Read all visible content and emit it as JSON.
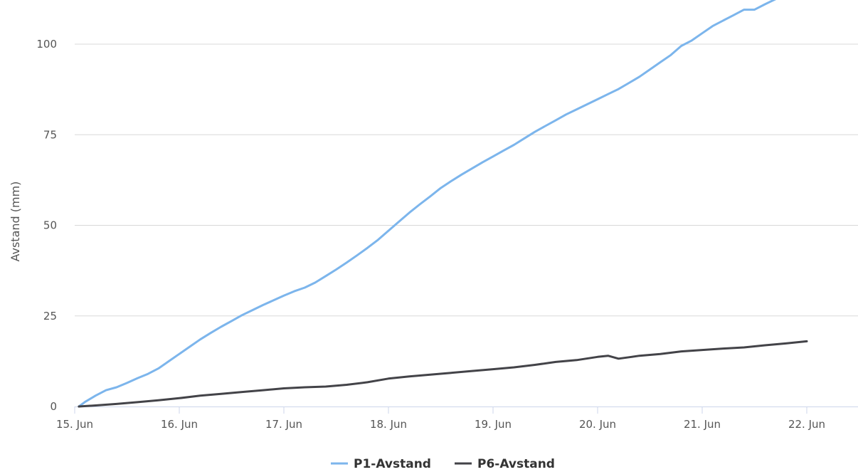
{
  "chart_data": {
    "type": "line",
    "xlabel": "",
    "ylabel": "Avstand (mm)",
    "ylim": [
      0,
      110
    ],
    "yticks": [
      0,
      25,
      50,
      75,
      100
    ],
    "xlim": [
      0,
      7.45
    ],
    "xticks": [
      {
        "v": 0,
        "label": "15. Jun"
      },
      {
        "v": 1,
        "label": "16. Jun"
      },
      {
        "v": 2,
        "label": "17. Jun"
      },
      {
        "v": 3,
        "label": "18. Jun"
      },
      {
        "v": 4,
        "label": "19. Jun"
      },
      {
        "v": 5,
        "label": "20. Jun"
      },
      {
        "v": 6,
        "label": "21. Jun"
      },
      {
        "v": 7,
        "label": "22. Jun"
      }
    ],
    "grid": true,
    "legend_position": "bottom-center",
    "series": [
      {
        "name": "P1-Avstand",
        "color": "#7cb5ec",
        "x": [
          0.04,
          0.1,
          0.2,
          0.3,
          0.4,
          0.5,
          0.6,
          0.7,
          0.8,
          0.9,
          1.0,
          1.1,
          1.2,
          1.3,
          1.4,
          1.5,
          1.6,
          1.7,
          1.8,
          1.9,
          2.0,
          2.1,
          2.2,
          2.3,
          2.4,
          2.5,
          2.6,
          2.7,
          2.8,
          2.9,
          3.0,
          3.1,
          3.2,
          3.3,
          3.4,
          3.5,
          3.6,
          3.7,
          3.8,
          3.9,
          4.0,
          4.1,
          4.2,
          4.3,
          4.4,
          4.5,
          4.6,
          4.7,
          4.8,
          4.9,
          5.0,
          5.1,
          5.2,
          5.3,
          5.4,
          5.5,
          5.6,
          5.7,
          5.8,
          5.9,
          6.0,
          6.1,
          6.2,
          6.3,
          6.4,
          6.47,
          6.5,
          6.6,
          6.7,
          6.8,
          6.9,
          7.0,
          7.1
        ],
        "values": [
          0,
          1.3,
          3.0,
          4.5,
          5.3,
          6.5,
          7.8,
          9.0,
          10.5,
          12.5,
          14.5,
          16.5,
          18.5,
          20.3,
          22.0,
          23.6,
          25.2,
          26.6,
          28.0,
          29.3,
          30.6,
          31.8,
          32.8,
          34.2,
          36.0,
          37.8,
          39.7,
          41.7,
          43.8,
          46.0,
          48.5,
          51.0,
          53.5,
          55.8,
          58.0,
          60.3,
          62.2,
          64.0,
          65.7,
          67.4,
          69.0,
          70.6,
          72.2,
          74.0,
          75.8,
          77.4,
          79.0,
          80.6,
          82.0,
          83.4,
          84.8,
          86.2,
          87.6,
          89.3,
          91.0,
          93.0,
          95.0,
          97.0,
          99.5,
          101.0,
          103.0,
          105.0,
          106.5,
          108.0,
          109.5,
          100,
          109.5,
          111,
          112.4,
          113.8,
          115.2,
          116.6,
          118
        ]
      },
      {
        "name": "P6-Avstand",
        "color": "#434348",
        "x": [
          0.04,
          0.2,
          0.4,
          0.6,
          0.8,
          1.0,
          1.2,
          1.4,
          1.6,
          1.8,
          2.0,
          2.2,
          2.4,
          2.6,
          2.8,
          3.0,
          3.2,
          3.4,
          3.6,
          3.8,
          4.0,
          4.2,
          4.4,
          4.6,
          4.8,
          5.0,
          5.1,
          5.2,
          5.3,
          5.4,
          5.6,
          5.8,
          6.0,
          6.2,
          6.4,
          6.6,
          6.8,
          7.0
        ],
        "values": [
          0,
          0.3,
          0.7,
          1.2,
          1.7,
          2.3,
          3.0,
          3.5,
          4.0,
          4.5,
          5.0,
          5.3,
          5.5,
          6.0,
          6.7,
          7.7,
          8.3,
          8.8,
          9.3,
          9.8,
          10.3,
          10.8,
          11.5,
          12.3,
          12.8,
          13.7,
          14.0,
          13.2,
          13.6,
          14.0,
          14.5,
          15.2,
          15.6,
          16.0,
          16.3,
          16.9,
          17.4,
          18.0
        ]
      }
    ]
  }
}
